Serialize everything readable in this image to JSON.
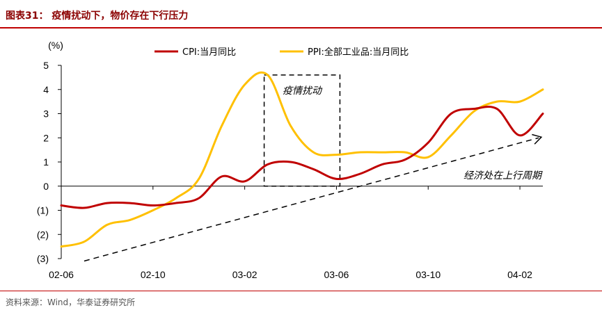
{
  "header": {
    "title": "图表31： 疫情扰动下，物价存在下行压力"
  },
  "footer": {
    "source": "资料来源：Wind，华泰证券研究所"
  },
  "colors": {
    "title": "#8B0000",
    "rule": "#C00000",
    "cpi": "#C00000",
    "ppi": "#FFC000"
  },
  "chart_data": {
    "type": "line",
    "unit_label": "(%)",
    "ylim": [
      -3,
      5
    ],
    "yticks": [
      5,
      4,
      3,
      2,
      1,
      0,
      -1,
      -2,
      -3
    ],
    "ytick_labels": [
      "5",
      "4",
      "3",
      "2",
      "1",
      "0",
      "(1)",
      "(2)",
      "(3)"
    ],
    "xtick_labels": [
      "02-06",
      "02-10",
      "03-02",
      "03-06",
      "03-10",
      "04-02"
    ],
    "xtick_positions": [
      0,
      4,
      8,
      12,
      16,
      20
    ],
    "x_range": [
      0,
      21
    ],
    "legend_position": "top",
    "grid": false,
    "series": [
      {
        "name": "CPI:当月同比",
        "color": "#C00000",
        "values": [
          -0.8,
          -0.9,
          -0.7,
          -0.7,
          -0.8,
          -0.7,
          -0.5,
          0.4,
          0.2,
          0.9,
          1.0,
          0.7,
          0.3,
          0.5,
          0.9,
          1.1,
          1.8,
          3.0,
          3.2,
          3.2,
          2.1,
          3.0
        ]
      },
      {
        "name": "PPI:全部工业品:当月同比",
        "color": "#FFC000",
        "values": [
          -2.5,
          -2.3,
          -1.6,
          -1.4,
          -1.0,
          -0.5,
          0.3,
          2.5,
          4.2,
          4.6,
          2.5,
          1.4,
          1.3,
          1.4,
          1.4,
          1.4,
          1.2,
          2.1,
          3.1,
          3.5,
          3.5,
          4.0
        ]
      }
    ],
    "annotations": [
      {
        "text": "疫情扰动",
        "type": "dashed-box",
        "x_range": [
          9,
          12
        ],
        "y_range": [
          0,
          4.6
        ]
      },
      {
        "text": "经济处在上行周期",
        "type": "dashed-arrow",
        "from": [
          1,
          -3.1
        ],
        "to": [
          21,
          2.0
        ]
      }
    ]
  }
}
